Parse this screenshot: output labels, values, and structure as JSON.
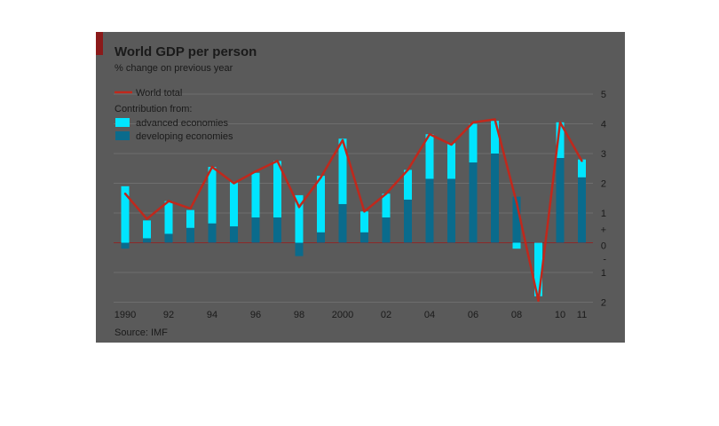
{
  "chart_data": {
    "type": "bar",
    "title": "World GDP per person",
    "subtitle": "% change on previous year",
    "source": "Source: IMF",
    "legend": {
      "line_label": "World total",
      "contribution_heading": "Contribution from:",
      "placement": "top-left"
    },
    "x_tick_labels": [
      "1990",
      "92",
      "94",
      "96",
      "98",
      "2000",
      "02",
      "04",
      "06",
      "08",
      "10",
      "11"
    ],
    "x_tick_years": [
      1990,
      1992,
      1994,
      1996,
      1998,
      2000,
      2002,
      2004,
      2006,
      2008,
      2010,
      2011
    ],
    "y_tick_labels": [
      "5",
      "4",
      "3",
      "2",
      "1",
      "+",
      "0",
      "-",
      "1",
      "2"
    ],
    "ylim": [
      -2,
      5
    ],
    "grid": true,
    "years": [
      1990,
      1991,
      1992,
      1993,
      1994,
      1995,
      1996,
      1997,
      1998,
      1999,
      2000,
      2001,
      2002,
      2003,
      2004,
      2005,
      2006,
      2007,
      2008,
      2009,
      2010,
      2011
    ],
    "series": [
      {
        "name": "advanced economies",
        "color": "#00e5ff",
        "values": [
          1.9,
          0.6,
          1.1,
          0.6,
          1.9,
          1.5,
          1.5,
          1.9,
          1.6,
          1.9,
          2.2,
          0.7,
          0.8,
          1.0,
          1.5,
          1.2,
          1.3,
          1.1,
          -0.2,
          -1.8,
          1.2,
          0.6
        ]
      },
      {
        "name": "developing economies",
        "color": "#0a6b8c",
        "values": [
          -0.2,
          0.15,
          0.3,
          0.5,
          0.65,
          0.55,
          0.85,
          0.85,
          -0.45,
          0.35,
          1.3,
          0.35,
          0.85,
          1.45,
          2.15,
          2.15,
          2.7,
          3.0,
          1.55,
          0.0,
          2.85,
          2.2
        ]
      }
    ],
    "line_series": {
      "name": "World total",
      "color": "#c0281c",
      "values": [
        1.65,
        0.8,
        1.4,
        1.15,
        2.55,
        2.0,
        2.4,
        2.75,
        1.2,
        2.2,
        3.45,
        1.05,
        1.65,
        2.45,
        3.65,
        3.3,
        4.05,
        4.15,
        1.35,
        -1.95,
        4.05,
        2.75
      ]
    },
    "colors": {
      "background": "#5a5a5a",
      "panel_outer": "#ffffff",
      "accent_bar": "#8b1a1a",
      "gridline": "#6e6e6e",
      "zero_line": "#8b2a2a",
      "text": "#1a1a1a"
    }
  }
}
